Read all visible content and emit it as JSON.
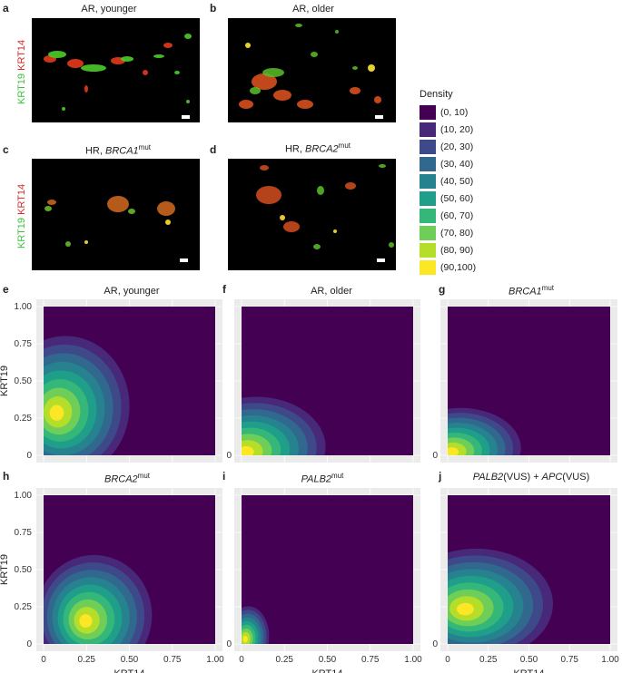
{
  "micro_panels": [
    {
      "letter": "a",
      "title": "AR, younger",
      "title_sup": "",
      "title_italic": false
    },
    {
      "letter": "b",
      "title": "AR, older",
      "title_sup": "",
      "title_italic": false
    },
    {
      "letter": "c",
      "title_pre": "HR, ",
      "title_it": "BRCA1",
      "title_sup": "mut"
    },
    {
      "letter": "d",
      "title_pre": "HR, ",
      "title_it": "BRCA2",
      "title_sup": "mut"
    }
  ],
  "micro_axis": {
    "green": "KRT19",
    "red": "KRT14"
  },
  "legend": {
    "title": "Density",
    "entries": [
      "(0, 10)",
      "(10, 20)",
      "(20, 30)",
      "(30, 40)",
      "(40, 50)",
      "(50, 60)",
      "(60, 70)",
      "(70, 80)",
      "(80, 90)",
      "(90,100)"
    ],
    "colors": [
      "#440154",
      "#482878",
      "#3e4989",
      "#31688e",
      "#26828e",
      "#1f9e89",
      "#35b779",
      "#6ece58",
      "#b5de2b",
      "#fde725"
    ]
  },
  "density_panels": [
    {
      "letter": "e",
      "title_html": {
        "text": "AR, younger",
        "it": "",
        "sup": "",
        "rest_it": "",
        "rest_sup": ""
      }
    },
    {
      "letter": "f",
      "title_html": {
        "text": "AR, older",
        "it": "",
        "sup": "",
        "rest_it": "",
        "rest_sup": ""
      }
    },
    {
      "letter": "g",
      "title_html": {
        "text": "",
        "it": "BRCA1",
        "sup": "mut",
        "rest_it": "",
        "rest_sup": ""
      }
    },
    {
      "letter": "h",
      "title_html": {
        "text": "",
        "it": "BRCA2",
        "sup": "mut",
        "rest_it": "",
        "rest_sup": ""
      }
    },
    {
      "letter": "i",
      "title_html": {
        "text": "",
        "it": "PALB2",
        "sup": "mut",
        "rest_it": "",
        "rest_sup": ""
      }
    },
    {
      "letter": "j",
      "title_html": {
        "text": "",
        "it": "PALB2",
        "sup": "",
        "rest_it": "APC",
        "rest_sup": ""
      },
      "title_full": "PALB2(VUS) + APC(VUS)"
    }
  ],
  "chart_data": {
    "type": "heatmap",
    "xlabel": "KRT14",
    "ylabel": "KRT19",
    "xlim": [
      0,
      1
    ],
    "ylim": [
      0,
      1
    ],
    "x_ticks": [
      "0",
      "0.25",
      "0.50",
      "0.75",
      "1.00"
    ],
    "y_ticks": [
      "0",
      "0.25",
      "0.50",
      "0.75",
      "1.00"
    ],
    "legend_title": "Density",
    "levels": [
      "(0, 10)",
      "(10, 20)",
      "(20, 30)",
      "(30, 40)",
      "(40, 50)",
      "(50, 60)",
      "(60, 70)",
      "(70, 80)",
      "(80, 90)",
      "(90,100)"
    ],
    "panels": [
      {
        "name": "AR, younger",
        "peak": {
          "x": 0.07,
          "y": 0.28
        }
      },
      {
        "name": "AR, older",
        "peak": {
          "x": 0.02,
          "y": 0.02
        }
      },
      {
        "name": "BRCA1 mut",
        "peak": {
          "x": 0.02,
          "y": 0.02
        }
      },
      {
        "name": "BRCA2 mut",
        "peak": {
          "x": 0.24,
          "y": 0.15
        }
      },
      {
        "name": "PALB2 mut",
        "peak": {
          "x": 0.02,
          "y": 0.03
        }
      },
      {
        "name": "PALB2(VUS) + APC(VUS)",
        "peak": {
          "x": 0.1,
          "y": 0.23
        }
      }
    ]
  }
}
